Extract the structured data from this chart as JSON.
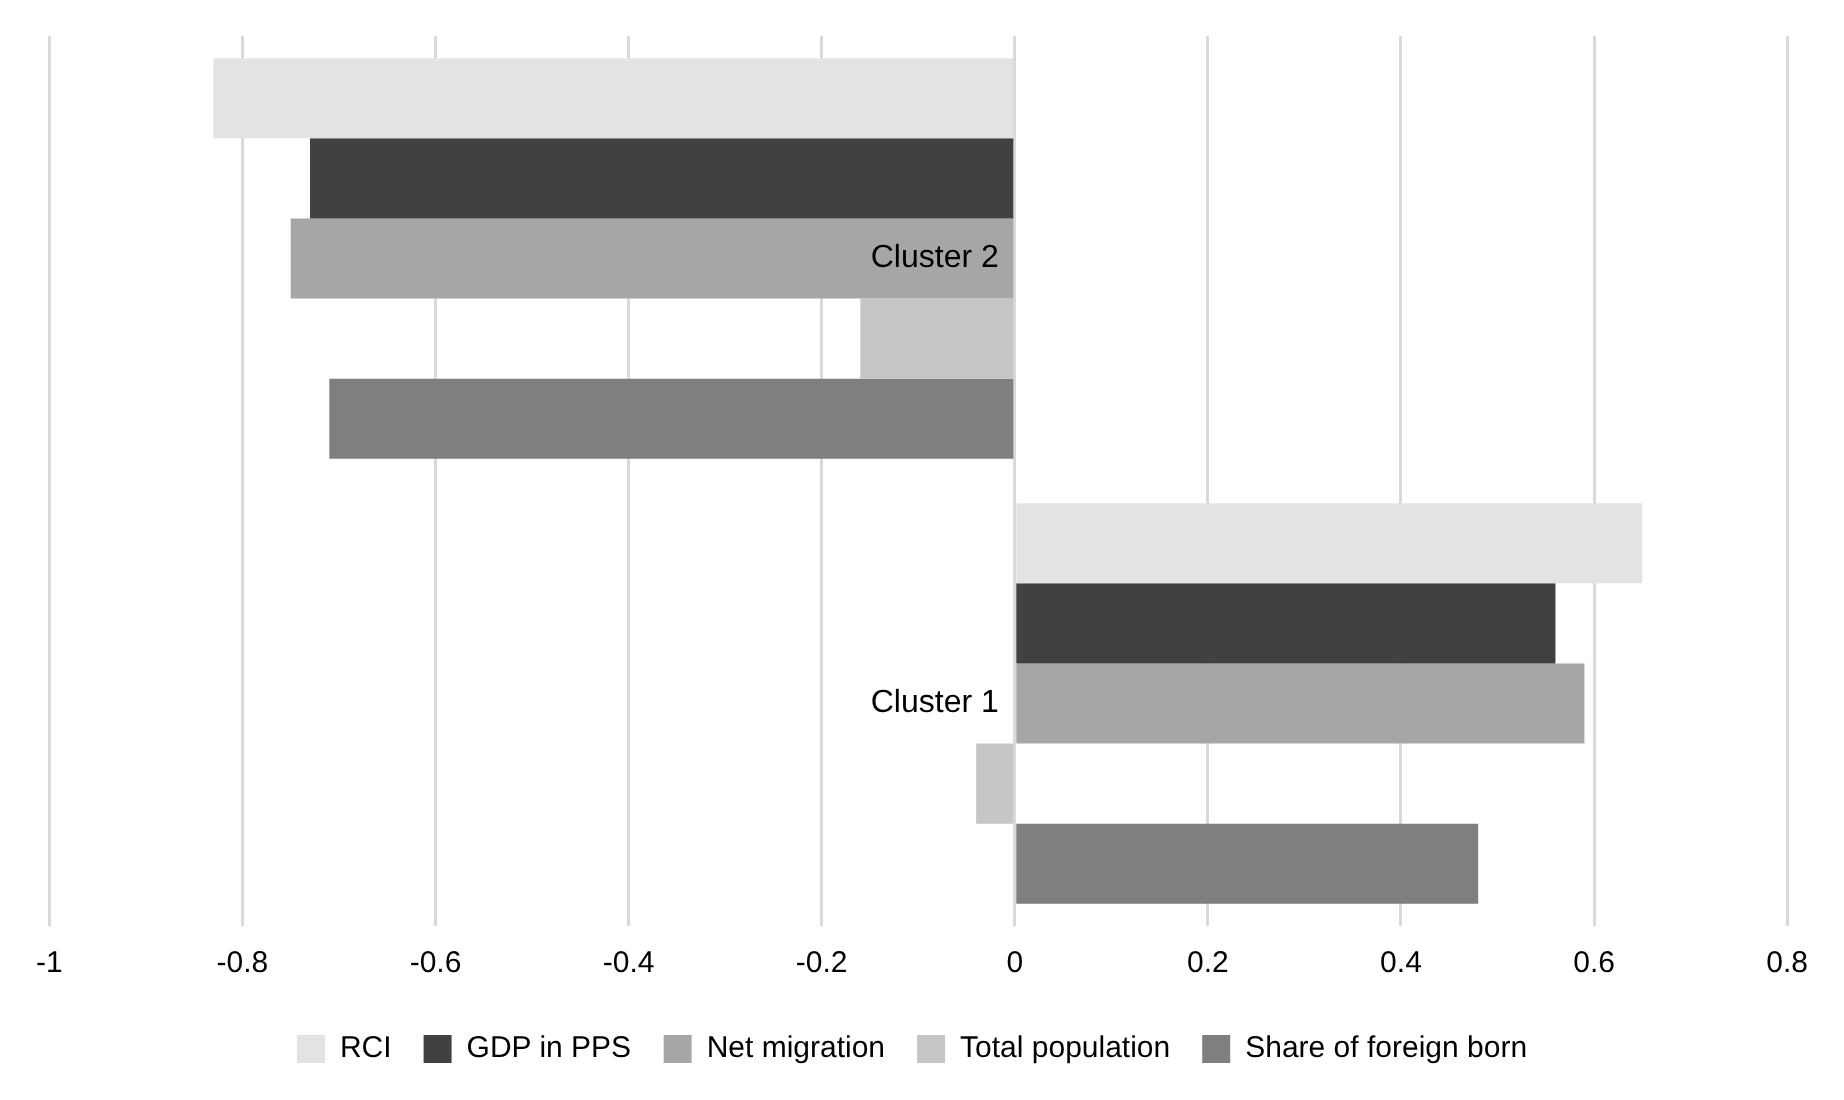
{
  "chart_data": {
    "type": "bar",
    "orientation": "horizontal",
    "categories": [
      "Cluster 2",
      "Cluster 1"
    ],
    "series": [
      {
        "name": "RCI",
        "color": "#e3e3e3",
        "values": [
          -0.83,
          0.65
        ]
      },
      {
        "name": "GDP in PPS",
        "color": "#434140",
        "values": [
          -0.73,
          0.56
        ]
      },
      {
        "name": "Net migration",
        "color": "#a5a6a5",
        "values": [
          -0.75,
          0.59
        ]
      },
      {
        "name": "Total population",
        "color": "#c6c6c6",
        "values": [
          -0.16,
          -0.04
        ]
      },
      {
        "name": "Share of foreign born",
        "color": "#7f7f7f",
        "values": [
          -0.71,
          0.48
        ]
      }
    ],
    "xlim": [
      -1,
      0.8
    ],
    "xticks": [
      -1,
      -0.8,
      -0.6,
      -0.4,
      -0.2,
      0,
      0.2,
      0.4,
      0.6,
      0.8
    ],
    "grid": "x",
    "legend": "bottom"
  }
}
